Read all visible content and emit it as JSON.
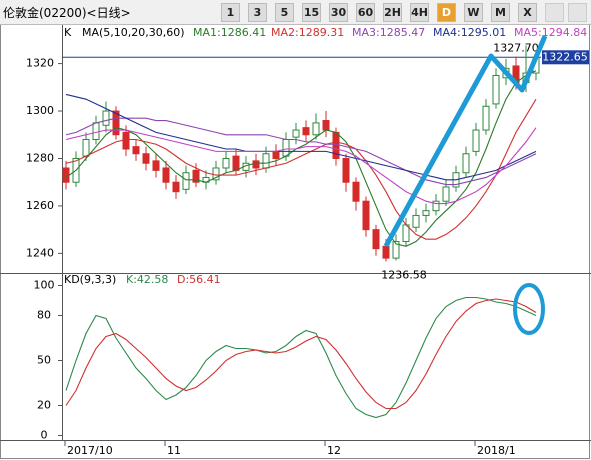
{
  "toolbar": {
    "title": "伦敦金(02200)<日线>",
    "periods": [
      "1",
      "3",
      "5",
      "15",
      "30",
      "60",
      "2H",
      "4H",
      "D",
      "W",
      "M",
      "X"
    ],
    "active_index": 8
  },
  "chart_data": [
    {
      "type": "candlestick",
      "label": "K",
      "indicator": "MA(5,10,20,30,60)",
      "up_color": "#2d8a3e",
      "down_color": "#d42a2a",
      "open": [
        1276,
        1270,
        1281,
        1288,
        1294,
        1300,
        1291,
        1285,
        1282,
        1279,
        1276,
        1270,
        1267,
        1275,
        1270,
        1271,
        1276,
        1281,
        1275,
        1279,
        1276,
        1283,
        1281,
        1289,
        1293,
        1290,
        1296,
        1291,
        1280,
        1270,
        1262,
        1250,
        1243,
        1238,
        1245,
        1251,
        1256,
        1258,
        1262,
        1268,
        1274,
        1283,
        1292,
        1303,
        1314,
        1319,
        1312,
        1316
      ],
      "high": [
        1279,
        1283,
        1291,
        1298,
        1304,
        1302,
        1294,
        1288,
        1285,
        1282,
        1279,
        1273,
        1277,
        1278,
        1275,
        1279,
        1283,
        1284,
        1281,
        1282,
        1285,
        1286,
        1291,
        1295,
        1296,
        1299,
        1300,
        1293,
        1282,
        1272,
        1264,
        1252,
        1246,
        1248,
        1255,
        1259,
        1261,
        1265,
        1271,
        1277,
        1285,
        1295,
        1305,
        1318,
        1322,
        1323,
        1327.7,
        1325
      ],
      "low": [
        1267,
        1268,
        1279,
        1286,
        1291,
        1288,
        1281,
        1279,
        1275,
        1272,
        1267,
        1263,
        1265,
        1268,
        1267,
        1269,
        1274,
        1273,
        1272,
        1273,
        1274,
        1277,
        1279,
        1286,
        1287,
        1288,
        1289,
        1277,
        1266,
        1258,
        1247,
        1239,
        1236.58,
        1237,
        1243,
        1249,
        1253,
        1256,
        1260,
        1266,
        1272,
        1281,
        1290,
        1301,
        1311,
        1309,
        1308,
        1313
      ],
      "close": [
        1270,
        1280,
        1288,
        1295,
        1300,
        1290,
        1284,
        1282,
        1278,
        1275,
        1270,
        1266,
        1274,
        1270,
        1272,
        1276,
        1280,
        1275,
        1278,
        1276,
        1282,
        1280,
        1288,
        1292,
        1290,
        1295,
        1292,
        1280,
        1270,
        1262,
        1250,
        1242,
        1238,
        1245,
        1252,
        1256,
        1258,
        1262,
        1268,
        1274,
        1282,
        1292,
        1302,
        1315,
        1318,
        1312,
        1316,
        1322.65
      ],
      "high_label": "1327.70",
      "low_label": "1236.58",
      "last_label": "1322.65",
      "last_color": "#1e3fa0",
      "series": [
        {
          "name": "MA1:1286.41",
          "color": "#2a7a2a",
          "values": [
            1272,
            1275,
            1280,
            1285,
            1290,
            1293,
            1292,
            1290,
            1286,
            1282,
            1278,
            1274,
            1271,
            1271,
            1270,
            1272,
            1274,
            1275,
            1277,
            1278,
            1278,
            1279,
            1281,
            1284,
            1286,
            1289,
            1292,
            1291,
            1287,
            1280,
            1270,
            1260,
            1250,
            1244,
            1243,
            1245,
            1249,
            1254,
            1258,
            1262,
            1267,
            1274,
            1284,
            1295,
            1305,
            1312,
            1315,
            1317
          ]
        },
        {
          "name": "MA2:1289.31",
          "color": "#d03030",
          "values": [
            1278,
            1279,
            1281,
            1283,
            1285,
            1287,
            1288,
            1288,
            1287,
            1286,
            1284,
            1281,
            1278,
            1276,
            1274,
            1273,
            1273,
            1273,
            1274,
            1275,
            1276,
            1277,
            1278,
            1280,
            1282,
            1284,
            1286,
            1287,
            1286,
            1284,
            1279,
            1273,
            1266,
            1258,
            1252,
            1248,
            1246,
            1246,
            1248,
            1251,
            1255,
            1260,
            1266,
            1273,
            1282,
            1291,
            1298,
            1305
          ]
        },
        {
          "name": "MA3:1285.47",
          "color": "#8e44ad",
          "values": [
            1290,
            1291,
            1293,
            1295,
            1296,
            1297,
            1297,
            1297,
            1297,
            1296,
            1296,
            1295,
            1294,
            1293,
            1292,
            1291,
            1290,
            1290,
            1290,
            1290,
            1290,
            1289,
            1288,
            1288,
            1287,
            1287,
            1286,
            1286,
            1285,
            1284,
            1283,
            1281,
            1279,
            1277,
            1275,
            1273,
            1271,
            1270,
            1269,
            1269,
            1270,
            1271,
            1272,
            1274,
            1276,
            1278,
            1280,
            1282
          ]
        },
        {
          "name": "MA4:1295.01",
          "color": "#1f2f8f",
          "values": [
            1307,
            1306,
            1305,
            1303,
            1301,
            1299,
            1297,
            1295,
            1293,
            1291,
            1290,
            1289,
            1288,
            1287,
            1286,
            1285,
            1284,
            1284,
            1283,
            1283,
            1283,
            1283,
            1283,
            1283,
            1283,
            1283,
            1283,
            1282,
            1281,
            1280,
            1279,
            1278,
            1277,
            1276,
            1275,
            1274,
            1273,
            1272,
            1271,
            1271,
            1272,
            1273,
            1274,
            1275,
            1277,
            1279,
            1281,
            1283
          ]
        },
        {
          "name": "MA5:1294.84",
          "color": "#c040c0",
          "values": [
            1288,
            1289,
            1290,
            1291,
            1292,
            1292,
            1292,
            1291,
            1290,
            1289,
            1288,
            1287,
            1286,
            1285,
            1284,
            1283,
            1283,
            1283,
            1283,
            1283,
            1283,
            1283,
            1284,
            1284,
            1285,
            1285,
            1285,
            1284,
            1283,
            1281,
            1278,
            1275,
            1272,
            1269,
            1266,
            1264,
            1262,
            1261,
            1261,
            1262,
            1264,
            1266,
            1269,
            1273,
            1277,
            1282,
            1287,
            1293
          ]
        }
      ],
      "ylim": [
        1233,
        1335
      ],
      "yticks": [
        1240,
        1260,
        1280,
        1300,
        1320
      ]
    },
    {
      "type": "line",
      "title": "KD(9,3,3)",
      "categories": [
        null,
        null,
        "2017/10",
        null,
        null,
        null,
        null,
        null,
        null,
        null,
        null,
        null,
        "11",
        null,
        null,
        null,
        null,
        null,
        null,
        null,
        null,
        null,
        null,
        null,
        null,
        null,
        null,
        null,
        "12",
        null,
        null,
        null,
        null,
        null,
        null,
        null,
        null,
        null,
        null,
        null,
        null,
        null,
        null,
        "2018/1",
        null,
        null,
        null,
        null
      ],
      "series": [
        {
          "name": "K:42.58",
          "color": "#2a8a4a",
          "values": [
            30,
            50,
            68,
            80,
            78,
            65,
            55,
            45,
            38,
            30,
            24,
            27,
            32,
            40,
            50,
            56,
            60,
            58,
            58,
            57,
            55,
            56,
            60,
            66,
            70,
            68,
            55,
            40,
            28,
            18,
            14,
            12,
            14,
            22,
            35,
            50,
            65,
            78,
            86,
            90,
            92,
            92,
            91,
            89,
            88,
            86,
            83,
            80
          ]
        },
        {
          "name": "D:56.41",
          "color": "#d03030",
          "values": [
            20,
            30,
            45,
            58,
            66,
            68,
            64,
            58,
            52,
            45,
            38,
            33,
            30,
            32,
            37,
            43,
            50,
            54,
            56,
            57,
            56,
            55,
            56,
            59,
            63,
            66,
            64,
            57,
            48,
            38,
            29,
            22,
            18,
            18,
            22,
            30,
            41,
            54,
            66,
            76,
            83,
            88,
            90,
            91,
            90,
            89,
            86,
            82
          ]
        }
      ],
      "ylim": [
        -3,
        105
      ],
      "yticks": [
        0,
        20,
        50,
        80,
        100
      ]
    }
  ]
}
